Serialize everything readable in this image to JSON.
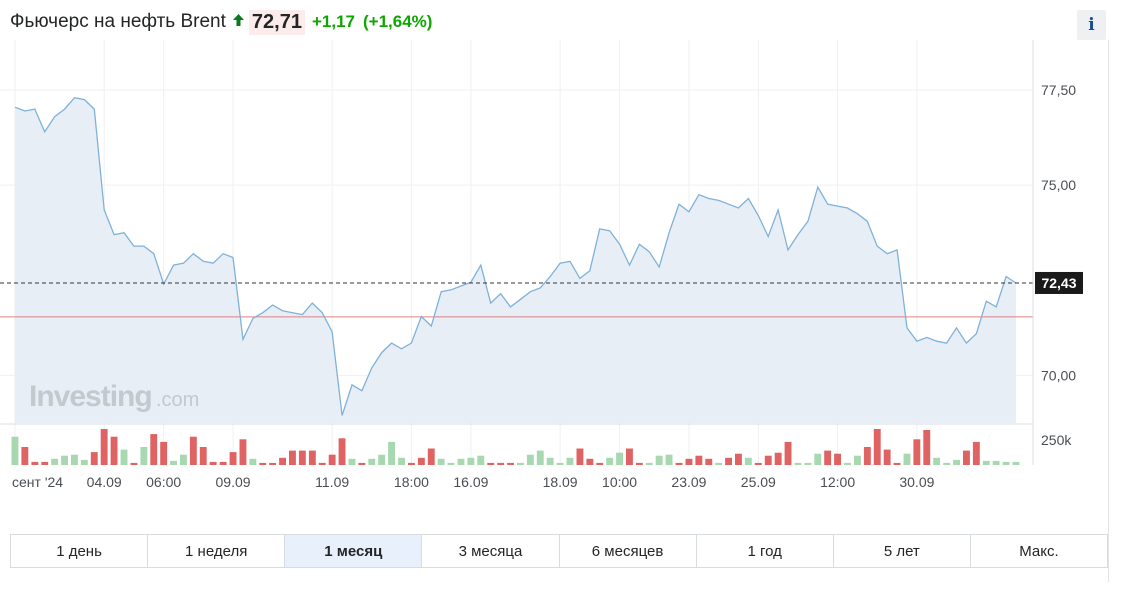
{
  "header": {
    "title": "Фьючерс на нефть Brent",
    "price": "72,71",
    "change": "+1,17",
    "change_pct": "(+1,64%)",
    "trend_icon": "up-arrow-icon",
    "info_label": "i"
  },
  "colors": {
    "line": "#7fb2d9",
    "area": "#e7eef6",
    "up_volume": "#a8d8b0",
    "down_volume": "#e06363",
    "ref_line": "#e08080",
    "last_label_bg": "#1a1a1a",
    "positive": "#0ea600"
  },
  "ranges": {
    "items": [
      "1 день",
      "1 неделя",
      "1 месяц",
      "3 месяца",
      "6 месяцев",
      "1 год",
      "5 лет",
      "Макс."
    ],
    "active": "1 месяц"
  },
  "chart_data": {
    "type": "area",
    "y_ticks": [
      "77,50",
      "75,00",
      "72,43",
      "70,00"
    ],
    "y_tick_values": [
      77.5,
      75.0,
      72.43,
      70.0
    ],
    "ylim": [
      68.75,
      78.5
    ],
    "x_tick_labels": [
      "сент '24",
      "04.09",
      "06:00",
      "09.09",
      "11.09",
      "18:00",
      "16.09",
      "18.09",
      "10:00",
      "23.09",
      "25.09",
      "12:00",
      "30.09"
    ],
    "last_value": 72.43,
    "last_value_label": "72,43",
    "reference_value": 71.54,
    "volume_tick": "250k",
    "volume_max": 250000,
    "watermark": "Investing",
    "watermark_suffix": ".com",
    "values": [
      77.05,
      76.95,
      77.0,
      76.4,
      76.8,
      77.0,
      77.3,
      77.25,
      77.0,
      74.35,
      73.7,
      73.75,
      73.4,
      73.4,
      73.2,
      72.4,
      72.9,
      72.95,
      73.2,
      73.0,
      72.95,
      73.2,
      73.1,
      70.95,
      71.5,
      71.65,
      71.85,
      71.7,
      71.65,
      71.6,
      71.9,
      71.65,
      71.15,
      68.95,
      69.75,
      69.6,
      70.2,
      70.6,
      70.85,
      70.7,
      70.85,
      71.55,
      71.3,
      72.2,
      72.25,
      72.35,
      72.45,
      72.9,
      71.9,
      72.15,
      71.8,
      72.0,
      72.2,
      72.3,
      72.6,
      72.95,
      73.0,
      72.55,
      72.75,
      73.85,
      73.8,
      73.45,
      72.9,
      73.45,
      73.25,
      72.85,
      73.75,
      74.5,
      74.3,
      74.75,
      74.65,
      74.6,
      74.5,
      74.4,
      74.65,
      74.2,
      73.65,
      74.35,
      73.3,
      73.7,
      74.05,
      74.95,
      74.5,
      74.45,
      74.4,
      74.25,
      74.05,
      73.4,
      73.2,
      73.3,
      71.25,
      70.9,
      71.0,
      70.9,
      70.85,
      71.25,
      70.85,
      71.1,
      71.95,
      71.8,
      72.6,
      72.43
    ],
    "volumes": [
      55,
      35,
      6,
      6,
      12,
      18,
      20,
      10,
      25,
      70,
      55,
      30,
      4,
      35,
      60,
      45,
      8,
      20,
      55,
      35,
      6,
      6,
      25,
      50,
      12,
      4,
      4,
      14,
      28,
      28,
      28,
      4,
      20,
      52,
      12,
      4,
      12,
      20,
      45,
      14,
      4,
      14,
      32,
      12,
      4,
      12,
      14,
      18,
      4,
      4,
      4,
      4,
      20,
      28,
      14,
      4,
      14,
      32,
      12,
      4,
      14,
      24,
      32,
      4,
      4,
      18,
      20,
      4,
      12,
      18,
      12,
      4,
      14,
      22,
      14,
      4,
      18,
      24,
      45,
      4,
      4,
      22,
      28,
      22,
      4,
      18,
      35,
      70,
      30,
      4,
      22,
      50,
      68,
      14,
      4,
      10,
      28,
      45,
      8,
      8,
      6,
      6
    ],
    "volume_up": [
      true,
      false,
      false,
      false,
      true,
      true,
      true,
      true,
      false,
      false,
      false,
      true,
      false,
      true,
      false,
      false,
      true,
      true,
      false,
      false,
      false,
      false,
      false,
      false,
      true,
      false,
      false,
      false,
      false,
      false,
      false,
      false,
      false,
      false,
      true,
      false,
      true,
      true,
      true,
      true,
      false,
      false,
      false,
      true,
      true,
      true,
      true,
      true,
      false,
      false,
      false,
      true,
      true,
      true,
      true,
      true,
      true,
      false,
      false,
      false,
      true,
      true,
      false,
      false,
      true,
      true,
      true,
      false,
      false,
      false,
      false,
      true,
      false,
      false,
      true,
      false,
      false,
      false,
      false,
      true,
      true,
      true,
      false,
      false,
      true,
      true,
      false,
      false,
      false,
      false,
      true,
      false,
      false,
      true,
      true,
      true,
      false,
      false,
      true,
      true,
      true,
      true
    ],
    "x_tick_positions": [
      0,
      9,
      15,
      22,
      32,
      40,
      46,
      55,
      61,
      68,
      75,
      83,
      91
    ]
  }
}
